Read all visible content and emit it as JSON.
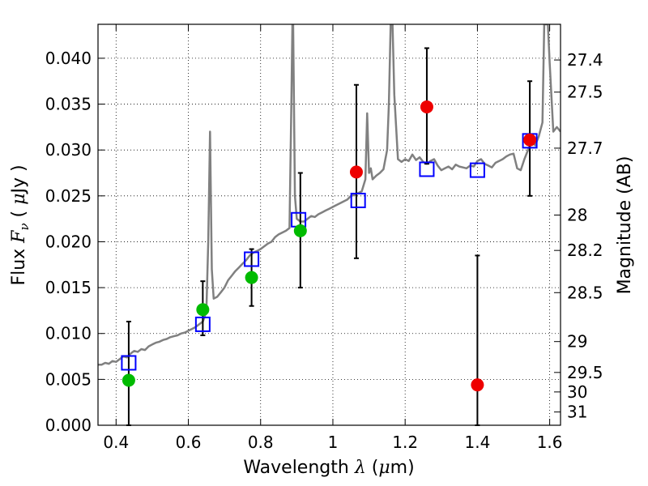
{
  "chart_data": {
    "type": "scatter",
    "xlabel": "Wavelength  λ (μm)",
    "ylabel": "Flux  F_ν  ( μJy )",
    "y2label": "Magnitude (AB)",
    "xlim": [
      0.35,
      1.63
    ],
    "ylim": [
      0.0,
      0.0437
    ],
    "grid": true,
    "x_ticks": [
      0.4,
      0.6,
      0.8,
      1.0,
      1.2,
      1.4,
      1.6
    ],
    "x_tick_labels": [
      "0.4",
      "0.6",
      "0.8",
      "1",
      "1.2",
      "1.4",
      "1.6"
    ],
    "y_ticks": [
      0.0,
      0.005,
      0.01,
      0.015,
      0.02,
      0.025,
      0.03,
      0.035,
      0.04
    ],
    "y_tick_labels": [
      "0.000",
      "0.005",
      "0.010",
      "0.015",
      "0.020",
      "0.025",
      "0.030",
      "0.035",
      "0.040"
    ],
    "mag_ticks": [
      "27.4",
      "27.5",
      "27.7",
      "28",
      "28.2",
      "28.5",
      "29",
      "29.5",
      "30",
      "31"
    ],
    "series": [
      {
        "kind": "line",
        "color": "#808080",
        "x": [
          0.35,
          0.36,
          0.37,
          0.38,
          0.39,
          0.4,
          0.41,
          0.42,
          0.43,
          0.44,
          0.45,
          0.46,
          0.47,
          0.48,
          0.49,
          0.5,
          0.51,
          0.52,
          0.53,
          0.54,
          0.55,
          0.56,
          0.57,
          0.58,
          0.59,
          0.6,
          0.61,
          0.62,
          0.63,
          0.64,
          0.645,
          0.65,
          0.655,
          0.66,
          0.665,
          0.67,
          0.68,
          0.69,
          0.7,
          0.71,
          0.72,
          0.73,
          0.74,
          0.75,
          0.76,
          0.77,
          0.78,
          0.79,
          0.8,
          0.81,
          0.82,
          0.83,
          0.84,
          0.85,
          0.86,
          0.87,
          0.88,
          0.885,
          0.888,
          0.89,
          0.895,
          0.9,
          0.91,
          0.92,
          0.93,
          0.94,
          0.95,
          0.96,
          0.97,
          0.98,
          0.99,
          1.0,
          1.01,
          1.02,
          1.03,
          1.04,
          1.05,
          1.06,
          1.07,
          1.08,
          1.09,
          1.095,
          1.1,
          1.105,
          1.11,
          1.12,
          1.13,
          1.14,
          1.15,
          1.155,
          1.16,
          1.165,
          1.17,
          1.18,
          1.19,
          1.2,
          1.21,
          1.22,
          1.23,
          1.24,
          1.25,
          1.26,
          1.27,
          1.28,
          1.29,
          1.3,
          1.31,
          1.32,
          1.33,
          1.34,
          1.35,
          1.36,
          1.37,
          1.38,
          1.39,
          1.4,
          1.41,
          1.42,
          1.43,
          1.44,
          1.45,
          1.46,
          1.47,
          1.48,
          1.49,
          1.5,
          1.51,
          1.52,
          1.53,
          1.54,
          1.55,
          1.56,
          1.57,
          1.58,
          1.585,
          1.59,
          1.595,
          1.6,
          1.61,
          1.62,
          1.63
        ],
        "y": [
          0.0066,
          0.0066,
          0.0068,
          0.0067,
          0.007,
          0.0069,
          0.0072,
          0.0075,
          0.0074,
          0.0078,
          0.0081,
          0.008,
          0.0083,
          0.0082,
          0.0086,
          0.0088,
          0.009,
          0.0091,
          0.0093,
          0.0094,
          0.0096,
          0.0097,
          0.0098,
          0.01,
          0.0101,
          0.0103,
          0.0105,
          0.0107,
          0.011,
          0.0113,
          0.0118,
          0.0125,
          0.02,
          0.032,
          0.017,
          0.0138,
          0.014,
          0.0145,
          0.015,
          0.0158,
          0.0163,
          0.0168,
          0.0172,
          0.0176,
          0.018,
          0.0185,
          0.0188,
          0.019,
          0.0192,
          0.0195,
          0.0198,
          0.02,
          0.0205,
          0.0208,
          0.021,
          0.0212,
          0.0215,
          0.035,
          0.0437,
          0.0437,
          0.025,
          0.0225,
          0.0222,
          0.0222,
          0.0225,
          0.0228,
          0.0227,
          0.023,
          0.0232,
          0.0234,
          0.0236,
          0.0238,
          0.024,
          0.0242,
          0.0244,
          0.0246,
          0.025,
          0.0251,
          0.0253,
          0.0255,
          0.0268,
          0.034,
          0.0275,
          0.028,
          0.0268,
          0.0272,
          0.0275,
          0.0279,
          0.03,
          0.035,
          0.0437,
          0.0437,
          0.036,
          0.029,
          0.0287,
          0.029,
          0.0288,
          0.0295,
          0.0289,
          0.0292,
          0.0287,
          0.0285,
          0.0288,
          0.029,
          0.0283,
          0.0278,
          0.028,
          0.0282,
          0.0279,
          0.0284,
          0.0282,
          0.0281,
          0.028,
          0.0283,
          0.0282,
          0.0288,
          0.029,
          0.0285,
          0.0283,
          0.0281,
          0.0286,
          0.0288,
          0.029,
          0.0293,
          0.0295,
          0.0296,
          0.028,
          0.0278,
          0.029,
          0.03,
          0.031,
          0.0305,
          0.0315,
          0.033,
          0.0437,
          0.0437,
          0.0437,
          0.0395,
          0.032,
          0.0325,
          0.032
        ]
      },
      {
        "kind": "model_squares",
        "color": "#0000ff",
        "x": [
          0.435,
          0.64,
          0.775,
          0.905,
          1.07,
          1.26,
          1.4,
          1.545
        ],
        "y": [
          0.0068,
          0.011,
          0.0181,
          0.0224,
          0.0245,
          0.0279,
          0.0278,
          0.031
        ]
      },
      {
        "kind": "detections",
        "color": "#00bb00",
        "x": [
          0.435,
          0.64,
          0.775,
          0.91
        ],
        "y": [
          0.0049,
          0.0126,
          0.0161,
          0.0212
        ],
        "err_low": [
          0.0049,
          0.0028,
          0.0031,
          0.0062
        ],
        "err_high": [
          0.0064,
          0.0031,
          0.0031,
          0.0063
        ]
      },
      {
        "kind": "upper_points",
        "color": "#ee0000",
        "x": [
          1.065,
          1.26,
          1.4,
          1.545
        ],
        "y": [
          0.0276,
          0.0347,
          0.0044,
          0.0311
        ],
        "err_low": [
          0.0094,
          0.0062,
          0.0044,
          0.0061
        ],
        "err_high": [
          0.0095,
          0.0064,
          0.0141,
          0.0064
        ]
      }
    ]
  }
}
